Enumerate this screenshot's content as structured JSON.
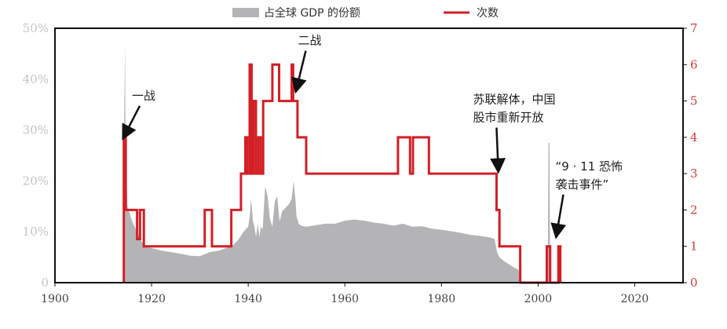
{
  "chart_data": {
    "type": "area+line",
    "legend": {
      "area_label": "占全球 GDP 的份额",
      "line_label": "次数",
      "placement": "top-center"
    },
    "x_axis": {
      "range": [
        1900,
        2030
      ],
      "ticks": [
        "1900",
        "1920",
        "1940",
        "1960",
        "1980",
        "2000",
        "2020"
      ]
    },
    "y_left": {
      "range": [
        0,
        50
      ],
      "ticks": [
        "0",
        "10%",
        "20%",
        "30%",
        "40%",
        "50%"
      ]
    },
    "y_right": {
      "range": [
        0,
        7
      ],
      "ticks": [
        "0",
        "1",
        "2",
        "3",
        "4",
        "5",
        "6",
        "7"
      ]
    },
    "colors": {
      "area": "#b4b4b6",
      "line": "#d21f26",
      "frame": "#111111",
      "arrow": "#111111"
    },
    "series": [
      {
        "name": "占全球 GDP 的份额",
        "kind": "area",
        "x": [
          1914.2,
          1914.3,
          1914.5,
          1914.6,
          1915,
          1916,
          1917,
          1918,
          1919,
          1920,
          1922,
          1924,
          1926,
          1928,
          1930,
          1932,
          1934,
          1936,
          1937,
          1938,
          1939,
          1940,
          1940.3,
          1940.6,
          1941,
          1941.3,
          1941.6,
          1942,
          1942.3,
          1942.6,
          1943,
          1943.5,
          1944,
          1944.5,
          1945,
          1945.5,
          1946,
          1946.5,
          1947,
          1947.5,
          1948,
          1948.5,
          1949,
          1949.4,
          1949.8,
          1950,
          1950.5,
          1951,
          1952,
          1954,
          1956,
          1958,
          1960,
          1962,
          1964,
          1966,
          1968,
          1970,
          1972,
          1974,
          1976,
          1978,
          1980,
          1982,
          1984,
          1986,
          1988,
          1990,
          1991,
          1991.5,
          1992,
          1993,
          1994,
          1995,
          1996,
          1996.2,
          2002.0,
          2002.15,
          2002.35,
          2002.5
        ],
        "y": [
          0,
          29,
          47,
          29,
          15,
          12,
          10,
          8,
          7,
          6.8,
          6.3,
          6,
          5.7,
          5.3,
          5.2,
          6,
          6.3,
          7,
          7.5,
          8.5,
          10,
          11,
          13,
          16.5,
          12,
          11,
          9,
          11.5,
          9,
          11,
          10.5,
          19,
          17,
          12.5,
          11,
          16,
          17,
          12,
          14,
          14.5,
          15,
          15.5,
          16.5,
          20,
          16,
          13,
          11.5,
          11.2,
          11,
          11.3,
          11.6,
          11.6,
          12.2,
          12.4,
          12.2,
          11.8,
          11.6,
          11.2,
          11.6,
          11,
          11.1,
          10.6,
          10.4,
          10.1,
          9.8,
          9.4,
          9.2,
          8.9,
          8.6,
          6,
          5,
          4.2,
          3.6,
          3,
          2.5,
          0,
          0,
          27.5,
          27.5,
          0
        ]
      },
      {
        "name": "次数",
        "kind": "step",
        "x": [
          1914.25,
          1914.25,
          1914.65,
          1914.65,
          1917,
          1917,
          1917.6,
          1917.6,
          1918.4,
          1918.4,
          1931,
          1931,
          1932.5,
          1932.5,
          1936.5,
          1936.5,
          1938.5,
          1938.5,
          1939.4,
          1939.4,
          1939.8,
          1939.8,
          1940.3,
          1940.3,
          1940.7,
          1940.7,
          1941.1,
          1941.1,
          1941.6,
          1941.6,
          1942.1,
          1942.1,
          1942.6,
          1942.6,
          1943.1,
          1943.1,
          1945,
          1945,
          1946.4,
          1946.4,
          1949,
          1949,
          1949.3,
          1949.3,
          1950.2,
          1950.2,
          1952,
          1952,
          1971,
          1971,
          1973.5,
          1973.5,
          1974.1,
          1974.1,
          1977.4,
          1977.4,
          1991.4,
          1991.4,
          1992,
          1992,
          1996.3,
          1996.3,
          2001.8,
          2001.8,
          2002.5,
          2002.5,
          2004.2,
          2004.2,
          2004.6,
          2004.6
        ],
        "y": [
          0,
          4,
          4,
          2,
          2,
          1.2,
          1.2,
          2,
          2,
          1,
          1,
          2,
          2,
          1,
          1,
          2,
          2,
          3,
          3,
          4,
          4,
          3,
          3,
          6,
          6,
          3,
          3,
          5,
          5,
          3,
          3,
          4,
          4,
          3,
          3,
          5,
          5,
          6,
          6,
          5,
          5,
          6,
          6,
          5,
          5,
          4,
          4,
          3,
          3,
          4,
          4,
          3,
          3,
          4,
          4,
          3,
          3,
          2,
          2,
          1,
          1,
          0,
          0,
          1,
          1,
          0,
          0,
          1,
          1,
          0
        ]
      }
    ],
    "annotations": [
      {
        "lines": [
          "一战"
        ],
        "target_x": 1914.3,
        "target_y_right": 4
      },
      {
        "lines": [
          "二战"
        ],
        "target_x": 1949.8,
        "target_y_right": 5.3
      },
      {
        "lines": [
          "苏联解体，中国",
          "股市重新开放"
        ],
        "target_x": 1991.4,
        "target_y_right": 3.1
      },
      {
        "lines": [
          "“9 · 11 恐怖",
          "袭击事件”"
        ],
        "target_x": 2003.6,
        "target_y_right": 1.3
      }
    ]
  }
}
